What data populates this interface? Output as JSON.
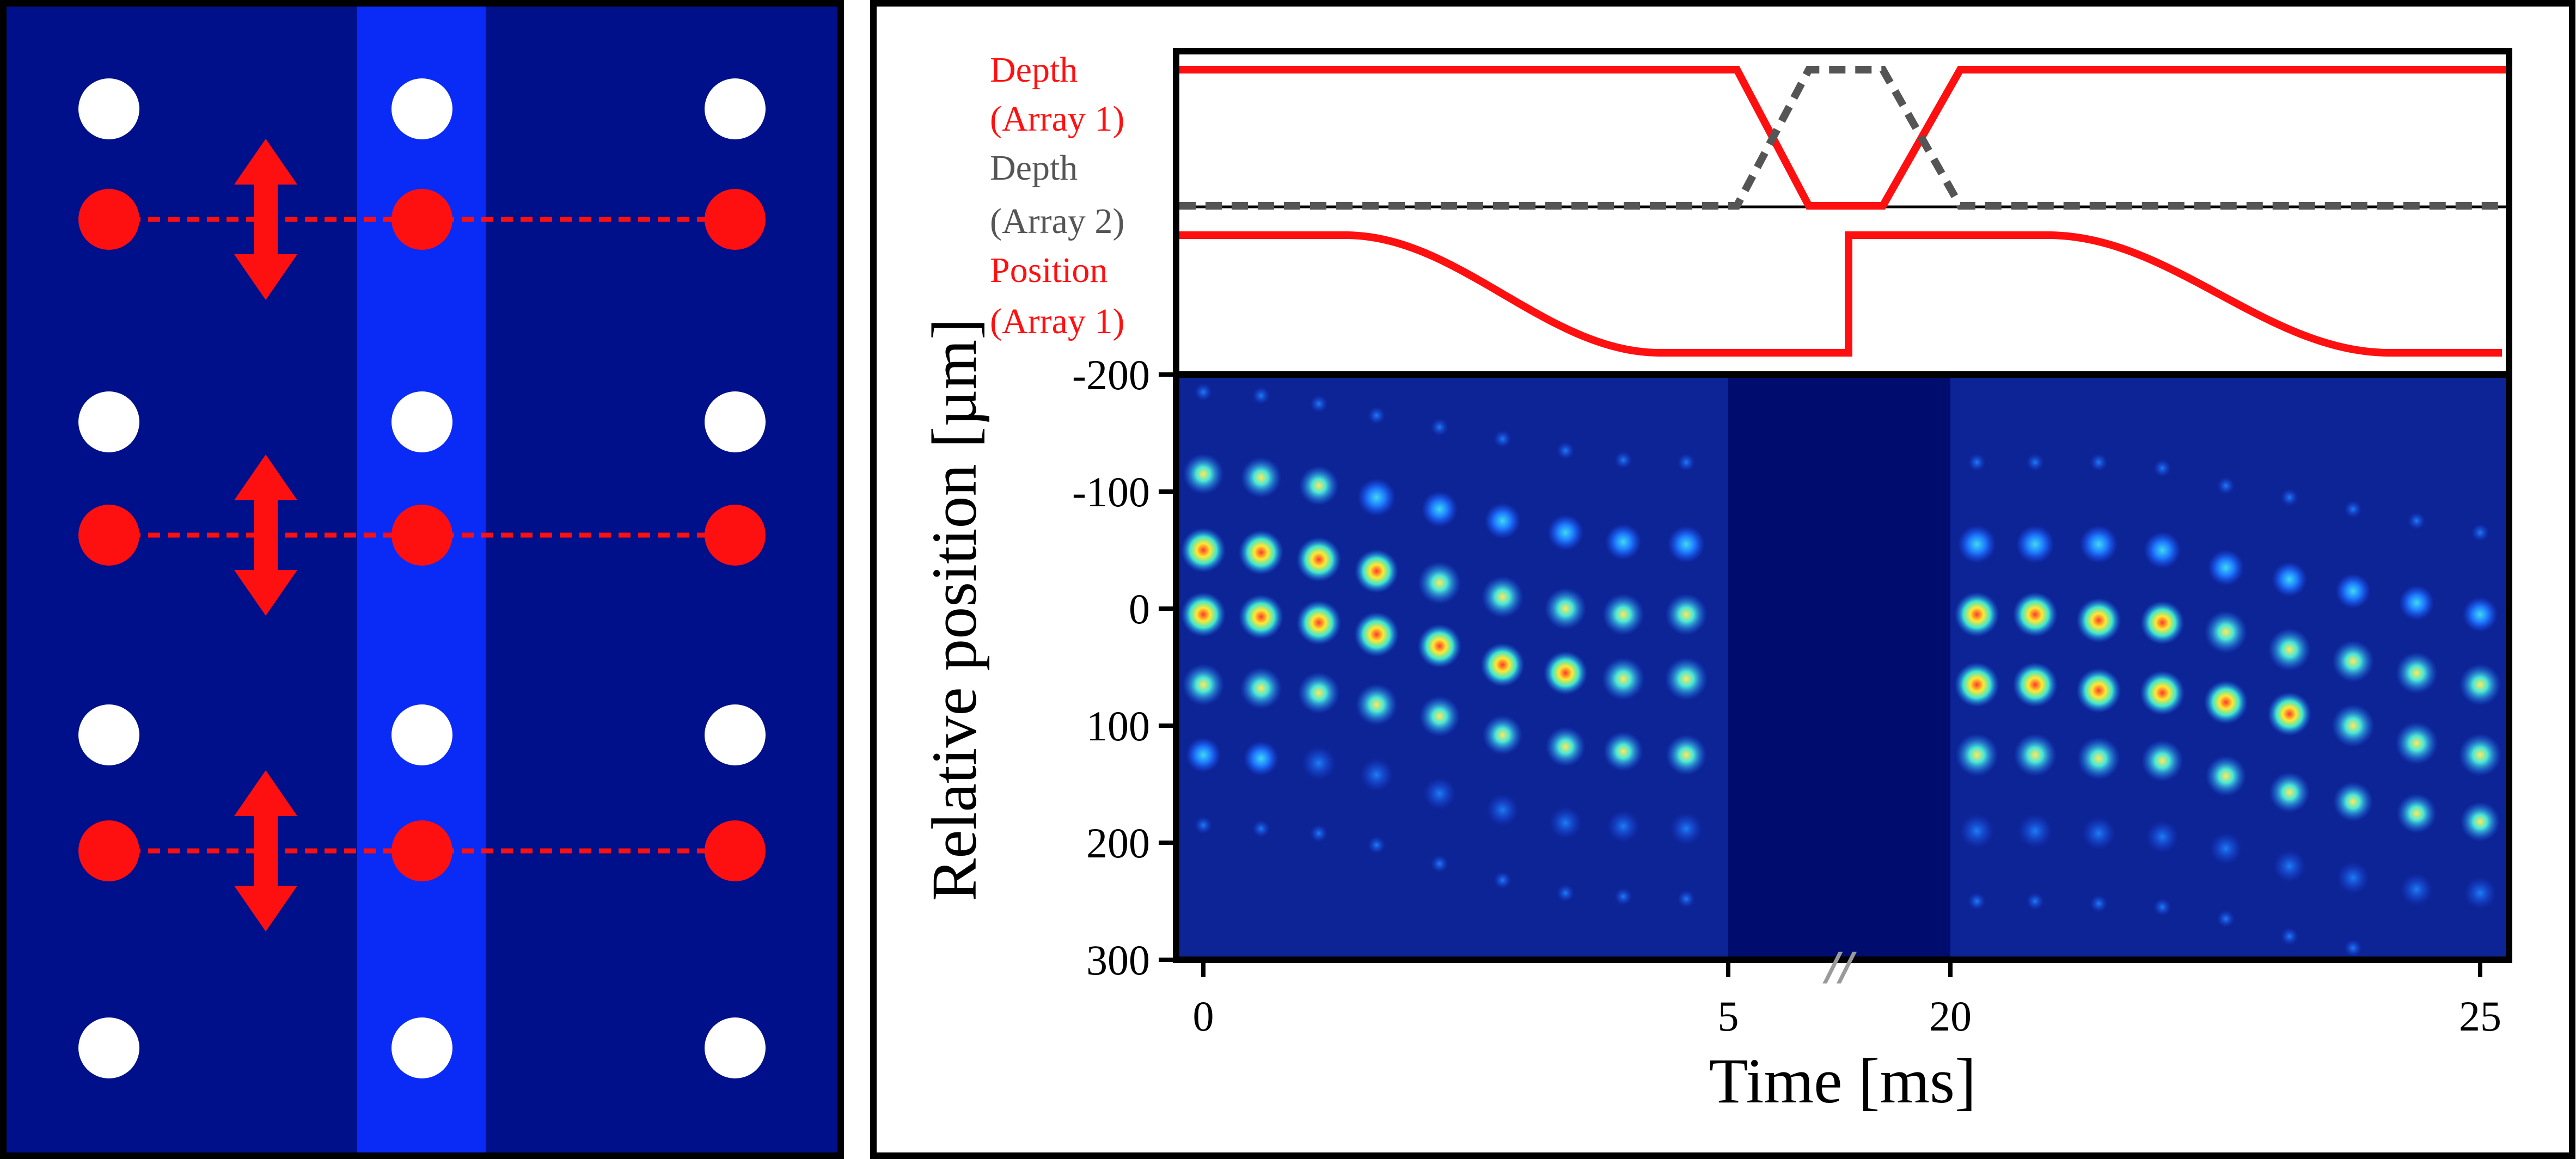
{
  "colors": {
    "background_dark": "#00108a",
    "beam_light": "#0a2bf5",
    "white_atom": "#ffffff",
    "red": "#ff1010",
    "gray_dashed": "#555555",
    "heatmap_bg": "#0d2496",
    "gap_band": "#000c6e"
  },
  "schematic": {
    "columns": 3,
    "white_rows": 4,
    "red_rows": 3,
    "arrow_type": "double-vertical-arrow",
    "highlighted_column": 2
  },
  "labels": {
    "depth_array1_line1": "Depth",
    "depth_array1_line2": "(Array 1)",
    "depth_array2_line1": "Depth",
    "depth_array2_line2": "(Array 2)",
    "position_array1_line1": "Position",
    "position_array1_line2": "(Array 1)",
    "xlabel": "Time [ms]",
    "ylabel": "Relative position [µm]",
    "break_mark": "//"
  },
  "chart_data": {
    "type": "heatmap",
    "xlabel": "Time [ms]",
    "ylabel": "Relative position [µm]",
    "x_ticks": [
      "0",
      "5",
      "20",
      "25"
    ],
    "y_ticks": [
      "-200",
      "-100",
      "0",
      "100",
      "200",
      "300"
    ],
    "ylim": [
      -200,
      300
    ],
    "y_inverted": true,
    "x_segments": [
      {
        "range": [
          0,
          5
        ]
      },
      {
        "range": [
          20,
          25
        ]
      }
    ],
    "axis_break": "between 5 and 20",
    "traces": [
      {
        "name": "Depth (Array 1)",
        "color": "#ff1010",
        "style": "solid",
        "x": [
          0,
          5,
          5.6,
          6.7,
          7.4,
          20
        ],
        "y": [
          1,
          1,
          0,
          0,
          1,
          1
        ]
      },
      {
        "name": "Depth (Array 2)",
        "color": "#555555",
        "style": "dashed",
        "x": [
          0,
          5,
          5.6,
          6.7,
          7.4,
          20
        ],
        "y": [
          0,
          0,
          1,
          1,
          0,
          0
        ]
      },
      {
        "name": "Position (Array 1)",
        "color": "#ff1010",
        "style": "solid",
        "x": [
          0,
          1,
          3.5,
          6,
          6,
          20.5,
          23,
          25
        ],
        "y": [
          1,
          1,
          0,
          0,
          1,
          1,
          0,
          0
        ]
      }
    ],
    "heatmap_series_1": {
      "times": [
        0,
        0.55,
        1.1,
        1.65,
        2.25,
        2.85,
        3.45,
        4.0,
        4.6
      ],
      "positions": [
        [
          -115,
          -50,
          5,
          65,
          125
        ],
        [
          -112,
          -48,
          7,
          68,
          128
        ],
        [
          -105,
          -42,
          12,
          72,
          132
        ],
        [
          -95,
          -32,
          22,
          82,
          142
        ],
        [
          -85,
          -22,
          32,
          92,
          158
        ],
        [
          -75,
          -10,
          48,
          108,
          172
        ],
        [
          -65,
          0,
          55,
          118,
          183
        ],
        [
          -57,
          5,
          60,
          122,
          186
        ],
        [
          -55,
          5,
          60,
          125,
          188
        ]
      ],
      "intensity": [
        [
          0.75,
          0.95,
          0.95,
          0.8,
          0.45
        ],
        [
          0.75,
          0.95,
          0.95,
          0.8,
          0.45
        ],
        [
          0.7,
          0.95,
          0.95,
          0.8,
          0.4
        ],
        [
          0.6,
          0.9,
          0.95,
          0.8,
          0.35
        ],
        [
          0.5,
          0.85,
          0.9,
          0.75,
          0.3
        ],
        [
          0.5,
          0.8,
          0.9,
          0.7,
          0.3
        ],
        [
          0.5,
          0.8,
          0.9,
          0.7,
          0.3
        ],
        [
          0.5,
          0.8,
          0.85,
          0.7,
          0.3
        ],
        [
          0.55,
          0.8,
          0.85,
          0.75,
          0.3
        ]
      ]
    },
    "heatmap_series_2": {
      "times": [
        20.25,
        20.8,
        21.4,
        22.0,
        22.6,
        23.2,
        23.8,
        24.4,
        25.0
      ],
      "positions": [
        [
          -55,
          5,
          65,
          125,
          190
        ],
        [
          -55,
          5,
          65,
          125,
          190
        ],
        [
          -55,
          10,
          70,
          128,
          192
        ],
        [
          -50,
          12,
          72,
          130,
          195
        ],
        [
          -35,
          20,
          80,
          143,
          205
        ],
        [
          -25,
          35,
          90,
          157,
          220
        ],
        [
          -15,
          45,
          100,
          165,
          230
        ],
        [
          -5,
          55,
          115,
          175,
          240
        ],
        [
          5,
          65,
          125,
          182,
          243
        ]
      ],
      "intensity": [
        [
          0.6,
          0.95,
          0.95,
          0.85,
          0.4
        ],
        [
          0.6,
          0.95,
          0.95,
          0.85,
          0.4
        ],
        [
          0.6,
          0.95,
          0.95,
          0.85,
          0.35
        ],
        [
          0.55,
          0.9,
          0.95,
          0.8,
          0.3
        ],
        [
          0.5,
          0.85,
          0.9,
          0.75,
          0.3
        ],
        [
          0.45,
          0.85,
          0.9,
          0.75,
          0.3
        ],
        [
          0.45,
          0.8,
          0.85,
          0.7,
          0.3
        ],
        [
          0.45,
          0.8,
          0.85,
          0.7,
          0.3
        ],
        [
          0.45,
          0.8,
          0.85,
          0.7,
          0.3
        ]
      ]
    }
  }
}
